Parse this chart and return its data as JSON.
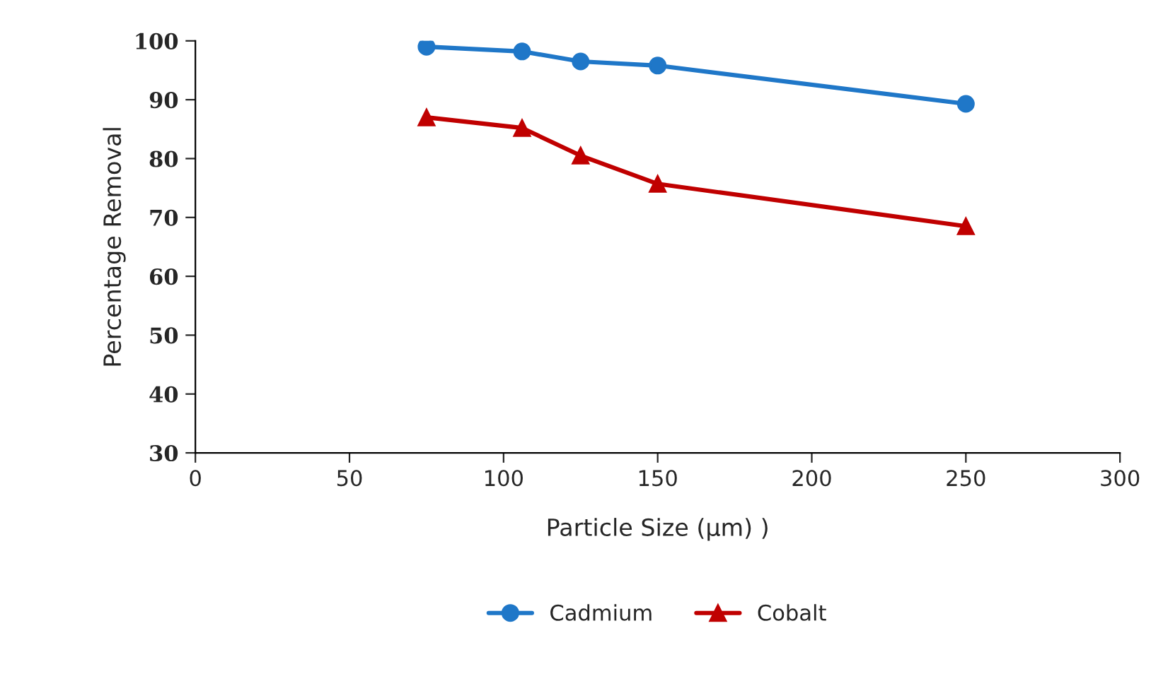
{
  "chart_data": {
    "type": "line",
    "xlabel": "Particle Size (μm) )",
    "ylabel": "Percentage Removal",
    "x": [
      75,
      106,
      125,
      150,
      250
    ],
    "series": [
      {
        "name": "Cadmium",
        "color": "#1f77c8",
        "marker": "circle",
        "values": [
          99,
          98.2,
          96.5,
          95.8,
          89.3
        ]
      },
      {
        "name": "Cobalt",
        "color": "#c00000",
        "marker": "triangle",
        "values": [
          87,
          85.2,
          80.5,
          75.7,
          68.5
        ]
      }
    ],
    "xlim": [
      0,
      300
    ],
    "xticks": [
      0,
      50,
      100,
      150,
      200,
      250,
      300
    ],
    "ylim": [
      30,
      100
    ],
    "yticks": [
      30,
      40,
      50,
      60,
      70,
      80,
      90,
      100
    ],
    "grid": false,
    "legend": "bottom"
  }
}
